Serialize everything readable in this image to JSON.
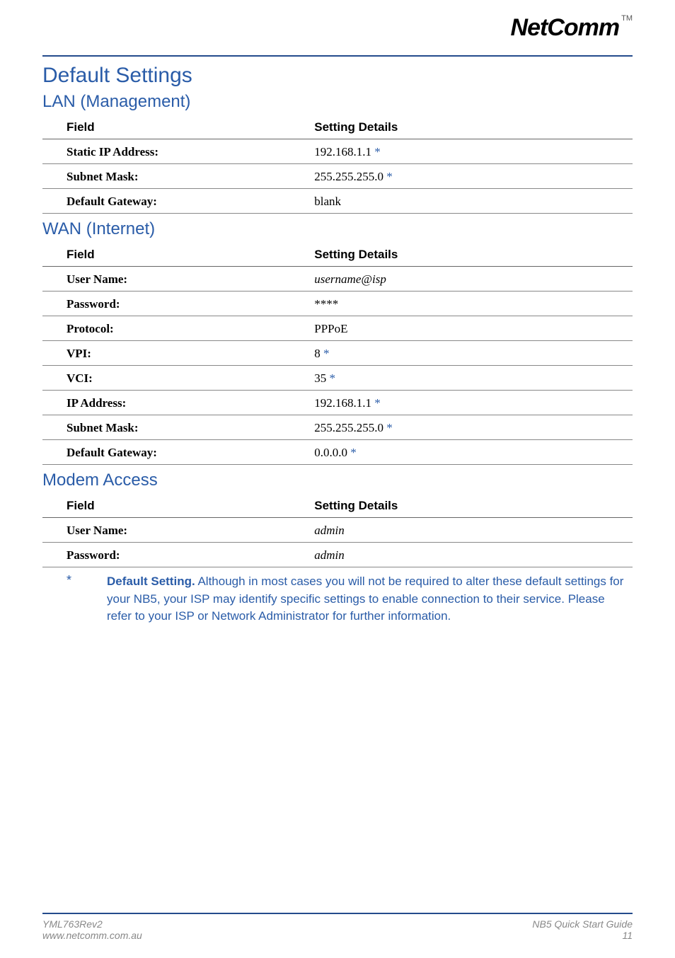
{
  "logo": {
    "text": "NetComm",
    "tm": "TM"
  },
  "page": {
    "title": "Default Settings"
  },
  "sections": {
    "lan": {
      "heading": "LAN (Management)",
      "col1": "Field",
      "col2": "Setting Details",
      "rows": {
        "ip": {
          "label": "Static IP Address:",
          "value": "192.168.1.1 ",
          "star": "*"
        },
        "mask": {
          "label": "Subnet Mask:",
          "value": "255.255.255.0 ",
          "star": " *"
        },
        "gw": {
          "label": "Default Gateway:",
          "value": "blank",
          "star": ""
        }
      }
    },
    "wan": {
      "heading": "WAN (Internet)",
      "col1": "Field",
      "col2": "Setting Details",
      "rows": {
        "user": {
          "label": "User Name:",
          "value": "username@isp",
          "star": "",
          "italic": true
        },
        "pass": {
          "label": "Password:",
          "value": "****",
          "star": ""
        },
        "proto": {
          "label": "Protocol:",
          "value": "PPPoE",
          "star": ""
        },
        "vpi": {
          "label": "VPI:",
          "value": "8 ",
          "star": "*",
          "label_blue": true
        },
        "vci": {
          "label": "VCI:",
          "value": "35 ",
          "star": "*",
          "label_blue": true
        },
        "ip": {
          "label": "IP Address:",
          "value": "192.168.1.1 ",
          "star": "*"
        },
        "mask": {
          "label": "Subnet Mask:",
          "value": "255.255.255.0 ",
          "star": " *"
        },
        "gw": {
          "label": "Default Gateway:",
          "value": "0.0.0.0 ",
          "star": "*"
        }
      }
    },
    "modem": {
      "heading": "Modem Access",
      "col1": "Field",
      "col2": "Setting Details",
      "rows": {
        "user": {
          "label": "User Name:",
          "value": "admin",
          "star": "",
          "italic": true
        },
        "pass": {
          "label": "Password:",
          "value": "admin",
          "star": "",
          "italic": true
        }
      }
    }
  },
  "note": {
    "star": "*",
    "label": "Default Setting.",
    "text": "  Although in most cases you will not be required to alter these default settings for your NB5, your ISP may identify specific settings to enable connection to their service.  Please refer to your ISP or Network Administrator for further information."
  },
  "footer": {
    "left1": "YML763Rev2",
    "left2": "www.netcomm.com.au",
    "right1": "NB5 Quick Start Guide",
    "right2": "11"
  },
  "colors": {
    "accent": "#2a5ca8",
    "rule": "#244b8c",
    "text": "#000000",
    "muted": "#888888",
    "background": "#ffffff"
  }
}
